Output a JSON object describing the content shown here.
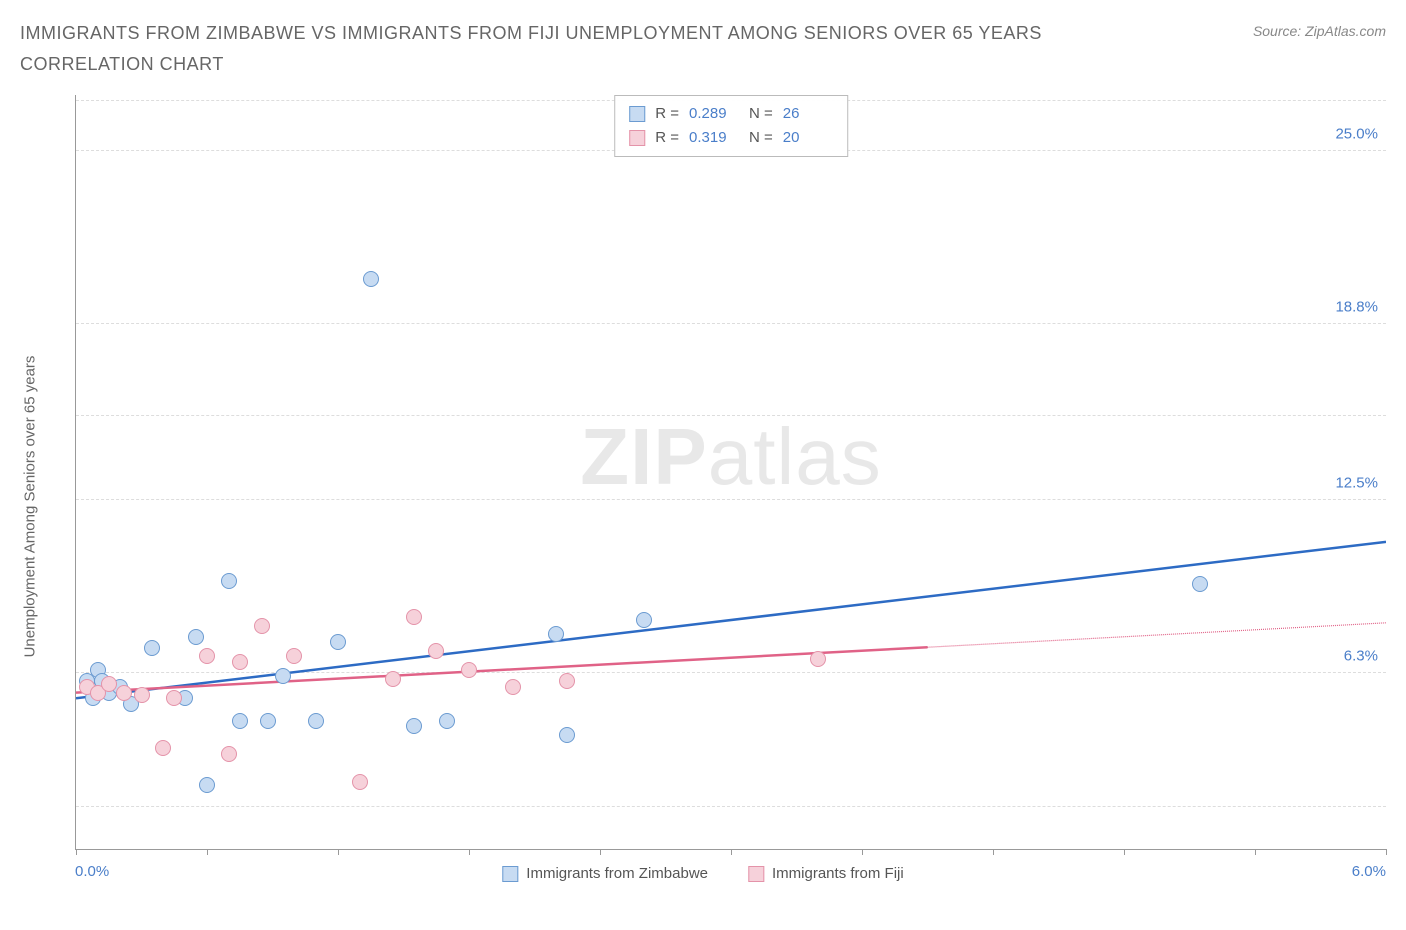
{
  "title": "IMMIGRANTS FROM ZIMBABWE VS IMMIGRANTS FROM FIJI UNEMPLOYMENT AMONG SENIORS OVER 65 YEARS CORRELATION CHART",
  "source": "Source: ZipAtlas.com",
  "watermark": {
    "bold": "ZIP",
    "light": "atlas"
  },
  "chart": {
    "type": "scatter",
    "ylabel": "Unemployment Among Seniors over 65 years",
    "xlim": [
      0.0,
      6.0
    ],
    "ylim": [
      0.0,
      27.0
    ],
    "xticks_pos": [
      0.0,
      0.6,
      1.2,
      1.8,
      2.4,
      3.0,
      3.6,
      4.2,
      4.8,
      5.4,
      6.0
    ],
    "xtick_labels": {
      "min": "0.0%",
      "max": "6.0%"
    },
    "yticks": [
      {
        "v": 6.3,
        "label": "6.3%"
      },
      {
        "v": 12.5,
        "label": "12.5%"
      },
      {
        "v": 18.8,
        "label": "18.8%"
      },
      {
        "v": 25.0,
        "label": "25.0%"
      }
    ],
    "grid_ylines": [
      1.5,
      6.3,
      12.5,
      15.5,
      18.8,
      25.0,
      26.8
    ],
    "background_color": "#ffffff",
    "grid_color": "#dddddd",
    "series": [
      {
        "name": "Immigrants from Zimbabwe",
        "color_fill": "#c7dbf2",
        "color_stroke": "#6b9bd1",
        "line_color": "#2d6bc4",
        "R": "0.289",
        "N": "26",
        "trend": {
          "x1": 0.0,
          "y1": 5.4,
          "x2": 6.0,
          "y2": 11.0,
          "solid_until_x": 6.0
        },
        "points": [
          [
            0.05,
            6.0
          ],
          [
            0.08,
            5.4
          ],
          [
            0.1,
            6.4
          ],
          [
            0.12,
            6.0
          ],
          [
            0.15,
            5.6
          ],
          [
            0.2,
            5.8
          ],
          [
            0.25,
            5.2
          ],
          [
            0.35,
            7.2
          ],
          [
            0.5,
            5.4
          ],
          [
            0.55,
            7.6
          ],
          [
            0.6,
            2.3
          ],
          [
            0.7,
            9.6
          ],
          [
            0.75,
            4.6
          ],
          [
            0.88,
            4.6
          ],
          [
            0.95,
            6.2
          ],
          [
            1.1,
            4.6
          ],
          [
            1.2,
            7.4
          ],
          [
            1.35,
            20.4
          ],
          [
            1.55,
            4.4
          ],
          [
            1.7,
            4.6
          ],
          [
            2.2,
            7.7
          ],
          [
            2.25,
            4.1
          ],
          [
            2.6,
            8.2
          ],
          [
            5.15,
            9.5
          ]
        ]
      },
      {
        "name": "Immigrants from Fiji",
        "color_fill": "#f6d1da",
        "color_stroke": "#e493a9",
        "line_color": "#e06287",
        "R": "0.319",
        "N": "20",
        "trend": {
          "x1": 0.0,
          "y1": 5.6,
          "x2": 6.0,
          "y2": 8.1,
          "solid_until_x": 3.9
        },
        "points": [
          [
            0.05,
            5.8
          ],
          [
            0.1,
            5.6
          ],
          [
            0.15,
            5.9
          ],
          [
            0.22,
            5.6
          ],
          [
            0.3,
            5.5
          ],
          [
            0.4,
            3.6
          ],
          [
            0.45,
            5.4
          ],
          [
            0.6,
            6.9
          ],
          [
            0.7,
            3.4
          ],
          [
            0.75,
            6.7
          ],
          [
            0.85,
            8.0
          ],
          [
            1.0,
            6.9
          ],
          [
            1.3,
            2.4
          ],
          [
            1.45,
            6.1
          ],
          [
            1.55,
            8.3
          ],
          [
            1.65,
            7.1
          ],
          [
            1.8,
            6.4
          ],
          [
            2.0,
            5.8
          ],
          [
            2.25,
            6.0
          ],
          [
            3.4,
            6.8
          ]
        ]
      }
    ],
    "legend_bottom": [
      {
        "label": "Immigrants from Zimbabwe",
        "fill": "#c7dbf2",
        "stroke": "#6b9bd1"
      },
      {
        "label": "Immigrants from Fiji",
        "fill": "#f6d1da",
        "stroke": "#e493a9"
      }
    ]
  }
}
